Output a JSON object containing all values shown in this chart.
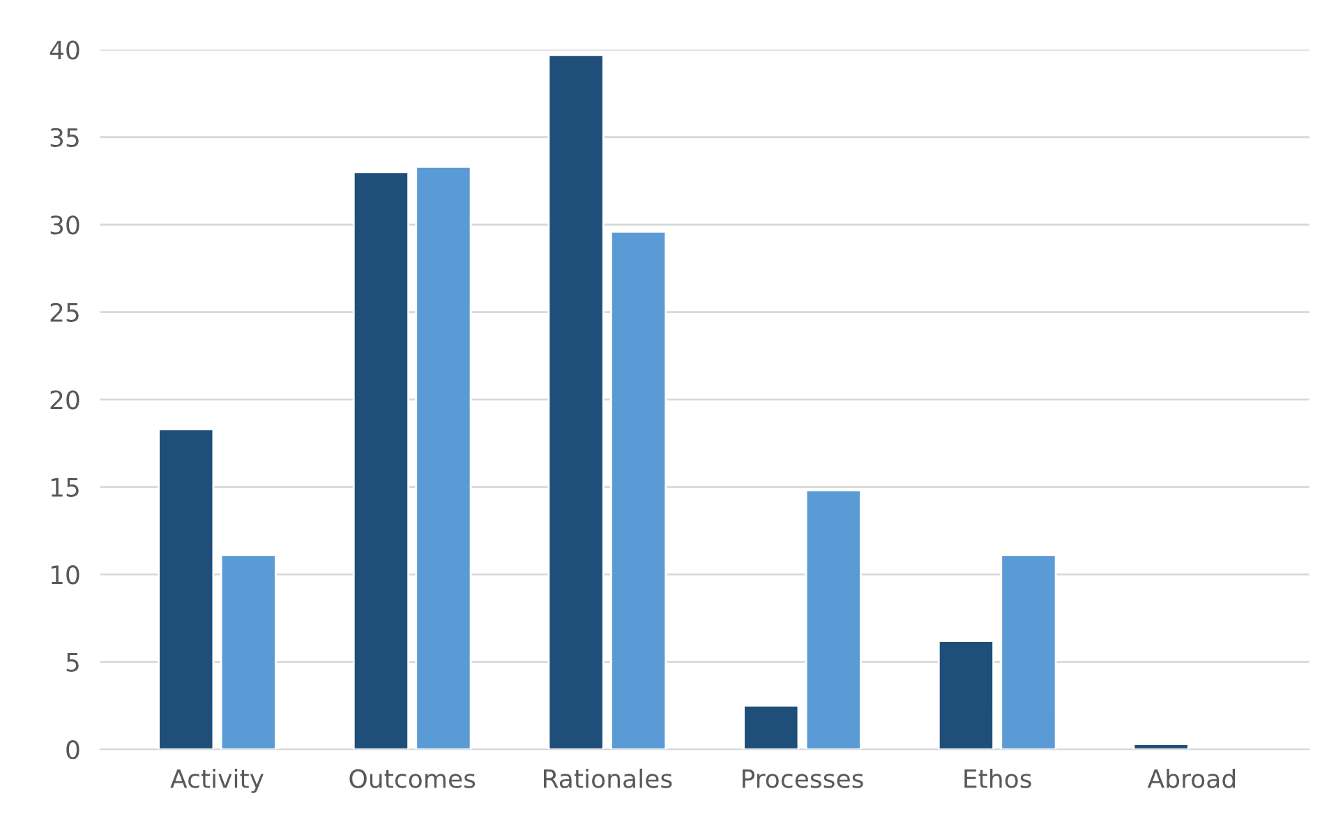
{
  "chart_data": {
    "type": "bar",
    "categories": [
      "Activity",
      "Outcomes",
      "Rationales",
      "Processes",
      "Ethos",
      "Abroad"
    ],
    "series": [
      {
        "color": "#1f4e79",
        "values": [
          18.3,
          33.0,
          39.7,
          2.5,
          6.2,
          0.3
        ]
      },
      {
        "color": "#5b9bd5",
        "values": [
          11.1,
          33.3,
          29.6,
          14.8,
          11.1,
          null
        ]
      }
    ],
    "ylim": [
      0,
      40
    ],
    "yticks": [
      0,
      5,
      10,
      15,
      20,
      25,
      30,
      35,
      40
    ],
    "grid": "y"
  }
}
